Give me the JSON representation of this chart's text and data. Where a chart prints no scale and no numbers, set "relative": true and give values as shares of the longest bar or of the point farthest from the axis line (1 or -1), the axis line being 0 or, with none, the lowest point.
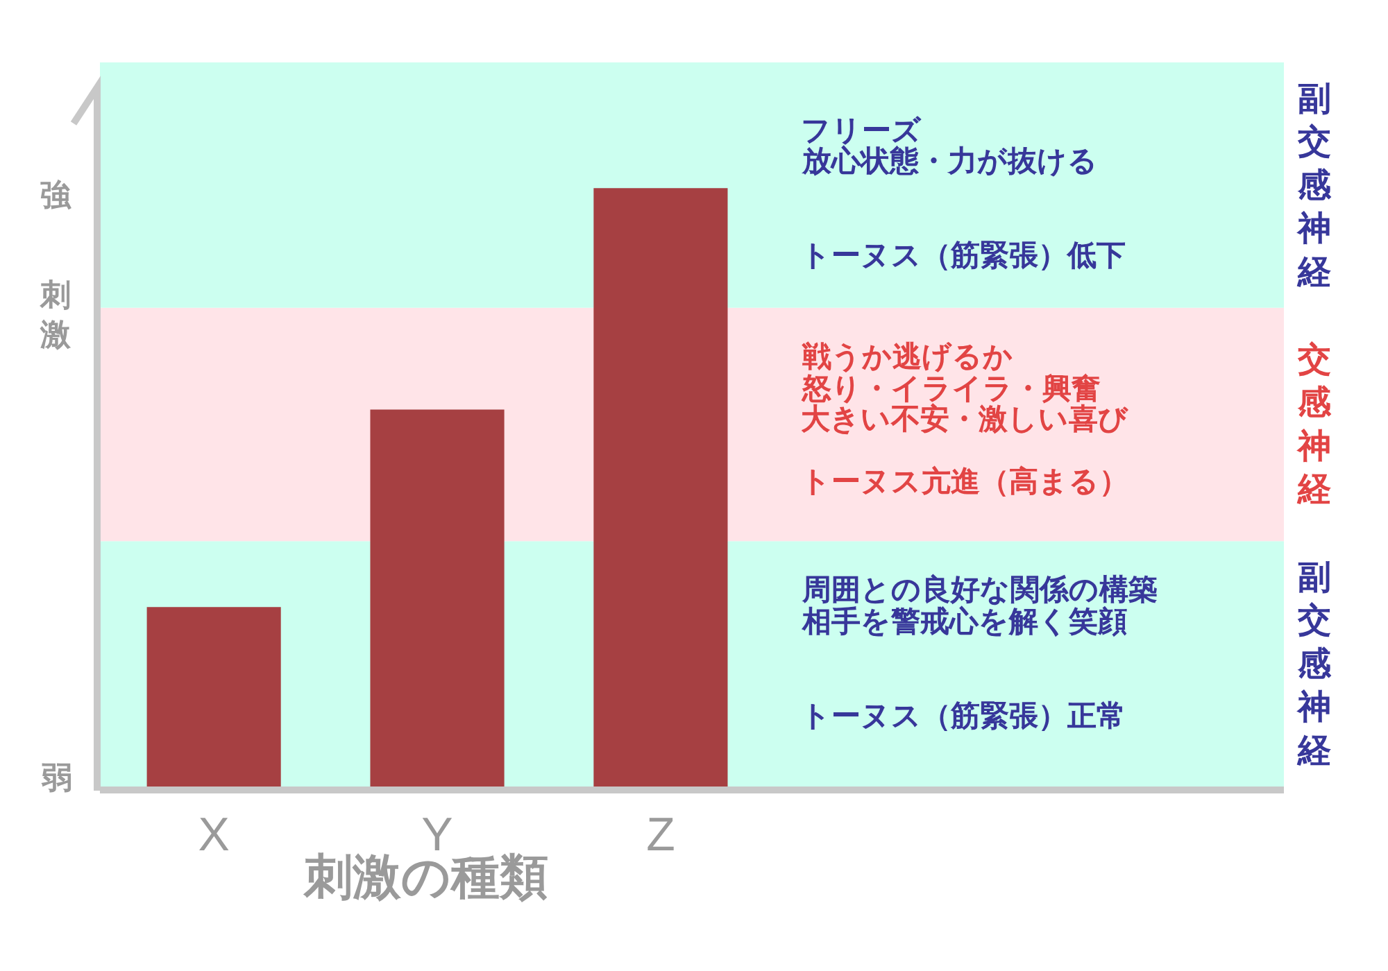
{
  "chart_data": {
    "type": "bar",
    "xlabel": "刺激の種類",
    "ylabel": "刺激",
    "categories": [
      "X",
      "Y",
      "Z"
    ],
    "values": [
      0.3,
      0.63,
      1
    ],
    "color": "#a64042",
    "relative": true,
    "tick_labels": "x",
    "bands": [
      {
        "axis": "y",
        "from": 0,
        "to": 0.41,
        "label": "副交感神経",
        "color": "#ccfff0"
      },
      {
        "axis": "y",
        "from": 0.41,
        "to": 0.8,
        "label": "交感神経",
        "color": "#ffe4e8"
      },
      {
        "axis": "y",
        "from": 0.8,
        "to": 1.21,
        "label": "副交感神経",
        "color": "#ccfff0"
      }
    ],
    "annotations": [
      "強",
      "弱",
      "フリーズ",
      "放心状態・力が抜ける",
      "トーヌス（筋緊張）低下",
      "戦うか逃げるか",
      "怒り・イライラ・興奮",
      "大きい不安・激しい喜び",
      "トーヌス亢進（高まる）",
      "周囲との良好な関係の構築",
      "相手を警戒心を解く笑顔",
      "トーヌス（筋緊張）正常"
    ]
  }
}
